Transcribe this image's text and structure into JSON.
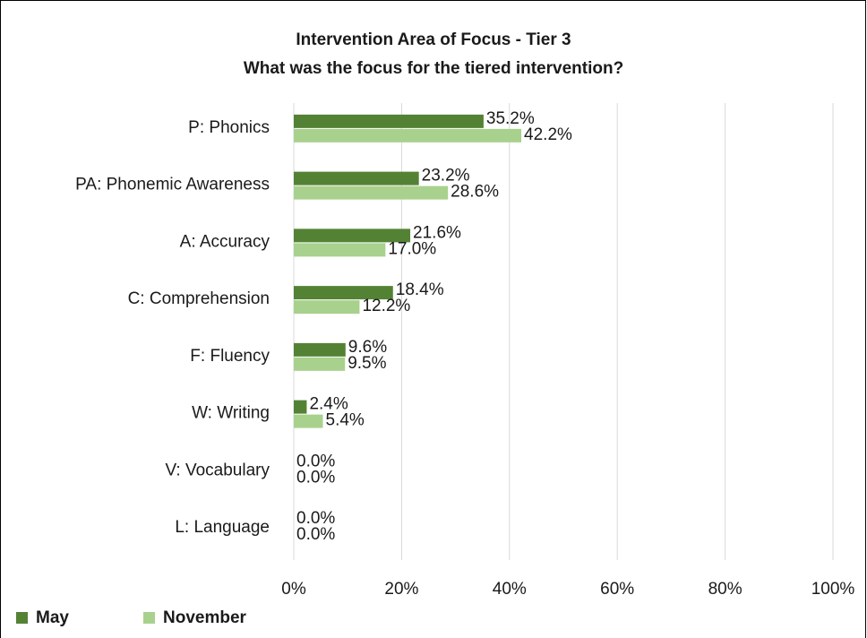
{
  "chart_data": {
    "type": "bar",
    "orientation": "horizontal",
    "title": "Intervention Area of Focus - Tier 3",
    "subtitle": "What was the focus for the tiered intervention?",
    "categories": [
      "P: Phonics",
      "PA: Phonemic Awareness",
      "A: Accuracy",
      "C: Comprehension",
      "F: Fluency",
      "W: Writing",
      "V: Vocabulary",
      "L: Language"
    ],
    "series": [
      {
        "name": "May",
        "color": "#548235",
        "values": [
          35.2,
          23.2,
          21.6,
          18.4,
          9.6,
          2.4,
          0,
          0
        ],
        "value_labels": [
          "35.2%",
          "23.2%",
          "21.6%",
          "18.4%",
          "9.6%",
          "2.4%",
          "0.0%",
          "0.0%"
        ]
      },
      {
        "name": "November",
        "color": "#a9d18e",
        "values": [
          42.2,
          28.6,
          17.0,
          12.2,
          9.5,
          5.4,
          0,
          0
        ],
        "value_labels": [
          "42.2%",
          "28.6%",
          "17.0%",
          "12.2%",
          "9.5%",
          "5.4%",
          "0.0%",
          "0.0%"
        ]
      }
    ],
    "xlim": [
      0,
      100
    ],
    "xticks": [
      {
        "value": 0,
        "label": "0%"
      },
      {
        "value": 20,
        "label": "20%"
      },
      {
        "value": 40,
        "label": "40%"
      },
      {
        "value": 60,
        "label": "60%"
      },
      {
        "value": 80,
        "label": "80%"
      },
      {
        "value": 100,
        "label": "100%"
      }
    ],
    "grid": true,
    "legend": "bottom-left"
  }
}
